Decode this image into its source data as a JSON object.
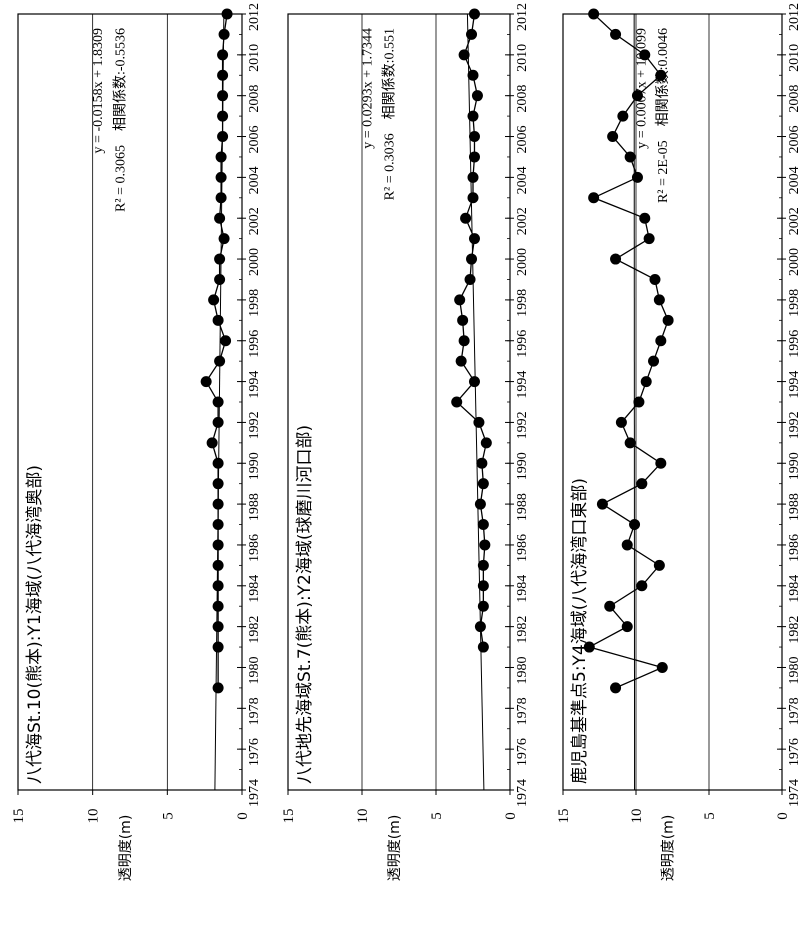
{
  "chart_data": [
    {
      "type": "line",
      "title": "八代海St.10(熊本):Y1海域(八代海湾奥部)",
      "ylabel": "透明度(m)",
      "ylim": [
        0,
        15
      ],
      "yticks": [
        0,
        5,
        10,
        15
      ],
      "xlim": [
        1974,
        2012
      ],
      "xticks": [
        1974,
        1976,
        1978,
        1980,
        1982,
        1984,
        1986,
        1988,
        1990,
        1992,
        1994,
        1996,
        1998,
        2000,
        2002,
        2004,
        2006,
        2008,
        2010,
        2012
      ],
      "grid": true,
      "equation": "y = -0.0158x + 1.8309",
      "r2": "R² = 0.3065　相関係数:-0.5536",
      "trend": {
        "slope": -0.0158,
        "intercept": 1.8309,
        "x0": 1974
      },
      "series": [
        {
          "x": [
            1979,
            1981,
            1982,
            1983,
            1984,
            1985,
            1986,
            1987,
            1988,
            1989,
            1990,
            1991,
            1992,
            1993,
            1994,
            1995,
            1996,
            1997,
            1998,
            1999,
            2000,
            2001,
            2002,
            2003,
            2004,
            2005,
            2006,
            2007,
            2008,
            2009,
            2010,
            2011,
            2012
          ],
          "y": [
            1.6,
            1.6,
            1.6,
            1.6,
            1.6,
            1.6,
            1.6,
            1.6,
            1.6,
            1.6,
            1.6,
            2.0,
            1.6,
            1.6,
            2.4,
            1.5,
            1.1,
            1.6,
            1.9,
            1.5,
            1.5,
            1.2,
            1.5,
            1.4,
            1.4,
            1.4,
            1.3,
            1.3,
            1.3,
            1.3,
            1.3,
            1.2,
            1.0
          ]
        }
      ]
    },
    {
      "type": "line",
      "title": "八代地先海域St.7(熊本):Y2海域(球磨川河口部)",
      "ylabel": "透明度(m)",
      "ylim": [
        0,
        15
      ],
      "yticks": [
        0,
        5,
        10,
        15
      ],
      "xlim": [
        1974,
        2012
      ],
      "xticks": [
        1974,
        1976,
        1978,
        1980,
        1982,
        1984,
        1986,
        1988,
        1990,
        1992,
        1994,
        1996,
        1998,
        2000,
        2002,
        2004,
        2006,
        2008,
        2010,
        2012
      ],
      "grid": true,
      "equation": "y = 0.0293x + 1.7344",
      "r2": "R² = 0.3036　相関係数:0.551",
      "trend": {
        "slope": 0.0293,
        "intercept": 1.7344,
        "x0": 1974
      },
      "series": [
        {
          "x": [
            1981,
            1982,
            1983,
            1984,
            1985,
            1986,
            1987,
            1988,
            1989,
            1990,
            1991,
            1992,
            1993,
            1994,
            1995,
            1996,
            1997,
            1998,
            1999,
            2000,
            2001,
            2002,
            2003,
            2004,
            2005,
            2006,
            2007,
            2008,
            2009,
            2010,
            2011,
            2012
          ],
          "y": [
            1.8,
            2.0,
            1.8,
            1.8,
            1.8,
            1.7,
            1.8,
            2.0,
            1.8,
            1.9,
            1.6,
            2.1,
            3.6,
            2.4,
            3.3,
            3.1,
            3.2,
            3.4,
            2.7,
            2.6,
            2.4,
            3.0,
            2.5,
            2.5,
            2.4,
            2.4,
            2.5,
            2.2,
            2.5,
            3.1,
            2.6,
            2.4
          ]
        }
      ]
    },
    {
      "type": "line",
      "title": "鹿児島基準点5:Y4海域(八代海湾口東部)",
      "ylabel": "透明度(m)",
      "ylim": [
        0,
        15
      ],
      "yticks": [
        0,
        5,
        10,
        15
      ],
      "xlim": [
        1974,
        2012
      ],
      "xticks": [
        1974,
        1976,
        1978,
        1980,
        1982,
        1984,
        1986,
        1988,
        1990,
        1992,
        1994,
        1996,
        1998,
        2000,
        2002,
        2004,
        2006,
        2008,
        2010,
        2012
      ],
      "grid": true,
      "equation": "y = 0.0007x + 10.099",
      "r2": "R² = 2E-05　相関係数:0.0046",
      "trend": {
        "slope": 0.0007,
        "intercept": 10.099,
        "x0": 1974
      },
      "series": [
        {
          "x": [
            1979,
            1980,
            1981,
            1982,
            1983,
            1984,
            1985,
            1986,
            1987,
            1988,
            1989,
            1990,
            1991,
            1992,
            1993,
            1994,
            1995,
            1996,
            1997,
            1998,
            1999,
            2000,
            2001,
            2002,
            2003,
            2004,
            2005,
            2006,
            2007,
            2008,
            2009,
            2010,
            2011,
            2012
          ],
          "y": [
            11.4,
            8.2,
            13.2,
            10.6,
            11.8,
            9.6,
            8.4,
            10.6,
            10.1,
            12.3,
            9.6,
            8.3,
            10.4,
            11.0,
            9.8,
            9.3,
            8.8,
            8.3,
            7.8,
            8.4,
            8.7,
            11.4,
            9.1,
            9.4,
            12.9,
            9.9,
            10.4,
            11.6,
            10.9,
            9.9,
            8.3,
            9.4,
            11.4,
            12.9
          ]
        }
      ]
    }
  ]
}
